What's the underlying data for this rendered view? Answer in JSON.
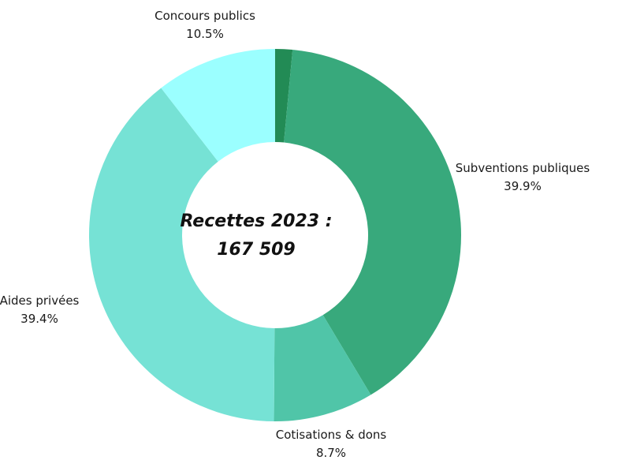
{
  "chart_data": {
    "type": "pie",
    "variant": "donut",
    "start_angle_deg": 0,
    "direction": "clockwise",
    "center_title_lines": [
      "Recettes 2023 :",
      "167 509"
    ],
    "slices": [
      {
        "name": "",
        "percent": 1.5,
        "color": "#228b55",
        "label": "",
        "value_label": ""
      },
      {
        "name": "Subventions publiques",
        "percent": 39.9,
        "color": "#38a97c",
        "label": "Subventions publiques",
        "value_label": "39.9%"
      },
      {
        "name": "Cotisations & dons",
        "percent": 8.7,
        "color": "#50c5a8",
        "label": "Cotisations & dons",
        "value_label": "8.7%"
      },
      {
        "name": "Aides privées",
        "percent": 39.4,
        "color": "#76e2d5",
        "label": "Aides privées",
        "value_label": "39.4%"
      },
      {
        "name": "Concours publics",
        "percent": 10.5,
        "color": "#9bffff",
        "label": "Concours publics",
        "value_label": "10.5%"
      }
    ]
  }
}
